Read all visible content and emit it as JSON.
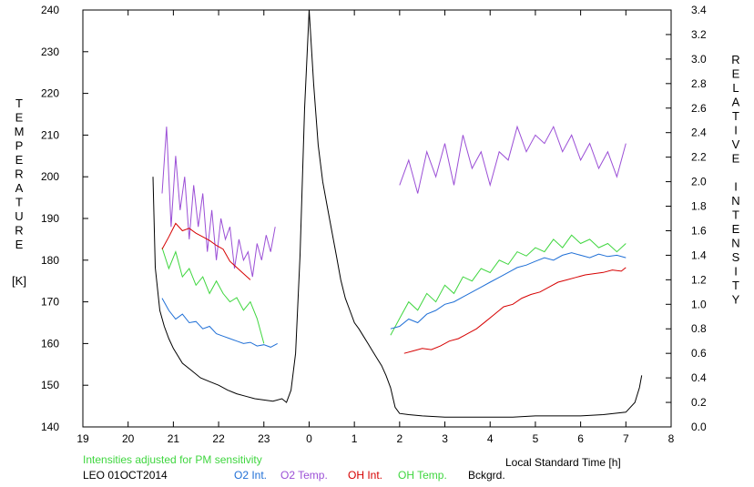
{
  "chart_data": {
    "type": "line",
    "station": "LEO 01OCT2014",
    "note": "Intensities adjusted for PM sensitivity",
    "xlabel": "Local Standard Time [h]",
    "ylabel_left_letters": [
      "T",
      "E",
      "M",
      "P",
      "E",
      "R",
      "A",
      "T",
      "U",
      "R",
      "E"
    ],
    "ylabel_left_unit": "[K]",
    "ylabel_right_letters": [
      "R",
      "E",
      "L",
      "A",
      "T",
      "I",
      "V",
      "E",
      " ",
      "I",
      "N",
      "T",
      "E",
      "N",
      "S",
      "I",
      "T",
      "Y"
    ],
    "xlim": [
      19,
      32
    ],
    "ylim_left": [
      140,
      240
    ],
    "ylim_right": [
      0.0,
      3.4
    ],
    "x_tick_values": [
      19,
      20,
      21,
      22,
      23,
      24,
      25,
      26,
      27,
      28,
      29,
      30,
      31,
      32
    ],
    "x_tick_labels": [
      "19",
      "20",
      "21",
      "22",
      "23",
      "0",
      "1",
      "2",
      "3",
      "4",
      "5",
      "6",
      "7",
      "8"
    ],
    "y_left_ticks": [
      140,
      150,
      160,
      170,
      180,
      190,
      200,
      210,
      220,
      230,
      240
    ],
    "y_right_ticks": [
      "0.0",
      "0.2",
      "0.4",
      "0.6",
      "0.8",
      "1.0",
      "1.2",
      "1.4",
      "1.6",
      "1.8",
      "2.0",
      "2.2",
      "2.4",
      "2.6",
      "2.8",
      "3.0",
      "3.2",
      "3.4"
    ],
    "colors": {
      "o2_int": "#1f6fd6",
      "o2_temp": "#9b4fd6",
      "oh_int": "#d60000",
      "oh_temp": "#3fd63f",
      "bckgrd": "#000000",
      "note": "#3fd63f"
    },
    "legend": [
      {
        "label": "O2 Int.",
        "color": "#1f6fd6"
      },
      {
        "label": "O2 Temp.",
        "color": "#9b4fd6"
      },
      {
        "label": "OH Int.",
        "color": "#d60000"
      },
      {
        "label": "OH Temp.",
        "color": "#3fd63f"
      },
      {
        "label": "Bckgrd.",
        "color": "#000000"
      }
    ],
    "series": [
      {
        "name": "O2 Temp.",
        "axis": "left",
        "color": "#9b4fd6",
        "segments": [
          {
            "x": [
              20.75,
              20.85,
              20.95,
              21.05,
              21.15,
              21.25,
              21.35,
              21.45,
              21.55,
              21.65,
              21.75,
              21.85,
              21.95,
              22.05,
              22.15,
              22.25,
              22.35,
              22.45,
              22.55,
              22.65,
              22.75,
              22.85,
              22.95,
              23.05,
              23.15,
              23.25
            ],
            "y": [
              196,
              212,
              188,
              205,
              192,
              200,
              185,
              198,
              188,
              196,
              182,
              192,
              180,
              190,
              185,
              188,
              178,
              185,
              180,
              182,
              176,
              184,
              180,
              186,
              182,
              188
            ]
          },
          {
            "x": [
              26.0,
              26.2,
              26.4,
              26.6,
              26.8,
              27.0,
              27.2,
              27.4,
              27.6,
              27.8,
              28.0,
              28.2,
              28.4,
              28.6,
              28.8,
              29.0,
              29.2,
              29.4,
              29.6,
              29.8,
              30.0,
              30.2,
              30.4,
              30.6,
              30.8,
              31.0
            ],
            "y": [
              198,
              204,
              196,
              206,
              200,
              208,
              198,
              210,
              202,
              206,
              198,
              206,
              204,
              212,
              206,
              210,
              208,
              212,
              206,
              210,
              204,
              208,
              202,
              206,
              200,
              208
            ]
          }
        ]
      },
      {
        "name": "OH Temp.",
        "axis": "left",
        "color": "#3fd63f",
        "segments": [
          {
            "x": [
              20.75,
              20.9,
              21.05,
              21.2,
              21.35,
              21.5,
              21.65,
              21.8,
              21.95,
              22.1,
              22.25,
              22.4,
              22.55,
              22.7,
              22.85,
              23.0
            ],
            "y": [
              183,
              178,
              182,
              176,
              178,
              174,
              176,
              172,
              175,
              172,
              170,
              171,
              168,
              170,
              166,
              160
            ]
          },
          {
            "x": [
              25.8,
              26.0,
              26.2,
              26.4,
              26.6,
              26.8,
              27.0,
              27.2,
              27.4,
              27.6,
              27.8,
              28.0,
              28.2,
              28.4,
              28.6,
              28.8,
              29.0,
              29.2,
              29.4,
              29.6,
              29.8,
              30.0,
              30.2,
              30.4,
              30.6,
              30.8,
              31.0
            ],
            "y": [
              162,
              166,
              170,
              168,
              172,
              170,
              174,
              172,
              176,
              175,
              178,
              177,
              180,
              179,
              182,
              181,
              183,
              182,
              185,
              183,
              186,
              184,
              185,
              183,
              184,
              182,
              184
            ]
          }
        ]
      },
      {
        "name": "O2 Int.",
        "axis": "right",
        "color": "#1f6fd6",
        "segments": [
          {
            "x": [
              20.75,
              20.9,
              21.05,
              21.2,
              21.35,
              21.5,
              21.65,
              21.8,
              21.95,
              22.1,
              22.25,
              22.4,
              22.55,
              22.7,
              22.85,
              23.0,
              23.15,
              23.3
            ],
            "y": [
              1.05,
              0.95,
              0.88,
              0.92,
              0.85,
              0.86,
              0.8,
              0.82,
              0.76,
              0.74,
              0.72,
              0.7,
              0.68,
              0.69,
              0.66,
              0.67,
              0.65,
              0.68
            ]
          },
          {
            "x": [
              25.8,
              26.0,
              26.2,
              26.4,
              26.6,
              26.8,
              27.0,
              27.2,
              27.4,
              27.6,
              27.8,
              28.0,
              28.2,
              28.4,
              28.6,
              28.8,
              29.0,
              29.2,
              29.4,
              29.6,
              29.8,
              30.0,
              30.2,
              30.4,
              30.6,
              30.8,
              31.0
            ],
            "y": [
              0.8,
              0.82,
              0.88,
              0.85,
              0.92,
              0.95,
              1.0,
              1.02,
              1.06,
              1.1,
              1.14,
              1.18,
              1.22,
              1.26,
              1.3,
              1.32,
              1.35,
              1.38,
              1.36,
              1.4,
              1.42,
              1.4,
              1.38,
              1.41,
              1.39,
              1.4,
              1.38
            ]
          }
        ]
      },
      {
        "name": "OH Int.",
        "axis": "right",
        "color": "#d60000",
        "segments": [
          {
            "x": [
              20.75,
              20.9,
              21.05,
              21.2,
              21.35,
              21.5,
              21.65,
              21.8,
              21.95,
              22.1,
              22.25,
              22.4,
              22.55,
              22.7
            ],
            "y": [
              1.45,
              1.55,
              1.66,
              1.6,
              1.62,
              1.58,
              1.55,
              1.52,
              1.48,
              1.45,
              1.35,
              1.3,
              1.25,
              1.2
            ]
          },
          {
            "x": [
              26.1,
              26.3,
              26.5,
              26.7,
              26.9,
              27.1,
              27.3,
              27.5,
              27.7,
              27.9,
              28.1,
              28.3,
              28.5,
              28.7,
              28.9,
              29.1,
              29.3,
              29.5,
              29.7,
              29.9,
              30.1,
              30.3,
              30.5,
              30.7,
              30.9,
              31.0
            ],
            "y": [
              0.6,
              0.62,
              0.64,
              0.63,
              0.66,
              0.7,
              0.72,
              0.76,
              0.8,
              0.86,
              0.92,
              0.98,
              1.0,
              1.05,
              1.08,
              1.1,
              1.14,
              1.18,
              1.2,
              1.22,
              1.24,
              1.25,
              1.26,
              1.28,
              1.27,
              1.3
            ]
          }
        ]
      },
      {
        "name": "Bckgrd.",
        "axis": "right",
        "color": "#000000",
        "segments": [
          {
            "x": [
              20.55,
              20.6,
              20.7,
              20.8,
              20.9,
              21.0,
              21.2,
              21.4,
              21.6,
              21.8,
              22.0,
              22.2,
              22.4,
              22.6,
              22.8,
              23.0,
              23.2,
              23.4,
              23.5,
              23.6,
              23.7,
              23.8,
              23.9,
              24.0,
              24.1,
              24.2,
              24.3,
              24.4,
              24.5,
              24.6,
              24.7,
              24.8,
              24.9,
              25.0,
              25.1,
              25.2,
              25.3,
              25.4,
              25.5,
              25.6,
              25.7,
              25.8,
              25.9,
              26.0,
              26.2,
              26.5,
              27.0,
              27.5,
              28.0,
              28.5,
              29.0,
              29.5,
              30.0,
              30.5,
              31.0,
              31.2,
              31.3,
              31.35
            ],
            "y": [
              2.04,
              1.3,
              0.95,
              0.82,
              0.72,
              0.64,
              0.52,
              0.46,
              0.4,
              0.37,
              0.34,
              0.3,
              0.27,
              0.25,
              0.23,
              0.22,
              0.21,
              0.23,
              0.2,
              0.3,
              0.6,
              1.4,
              2.6,
              3.4,
              2.8,
              2.3,
              2.0,
              1.8,
              1.6,
              1.4,
              1.2,
              1.05,
              0.95,
              0.85,
              0.8,
              0.74,
              0.68,
              0.62,
              0.56,
              0.5,
              0.42,
              0.32,
              0.16,
              0.11,
              0.1,
              0.09,
              0.08,
              0.08,
              0.08,
              0.08,
              0.09,
              0.09,
              0.09,
              0.1,
              0.12,
              0.2,
              0.32,
              0.42
            ]
          }
        ]
      }
    ]
  }
}
